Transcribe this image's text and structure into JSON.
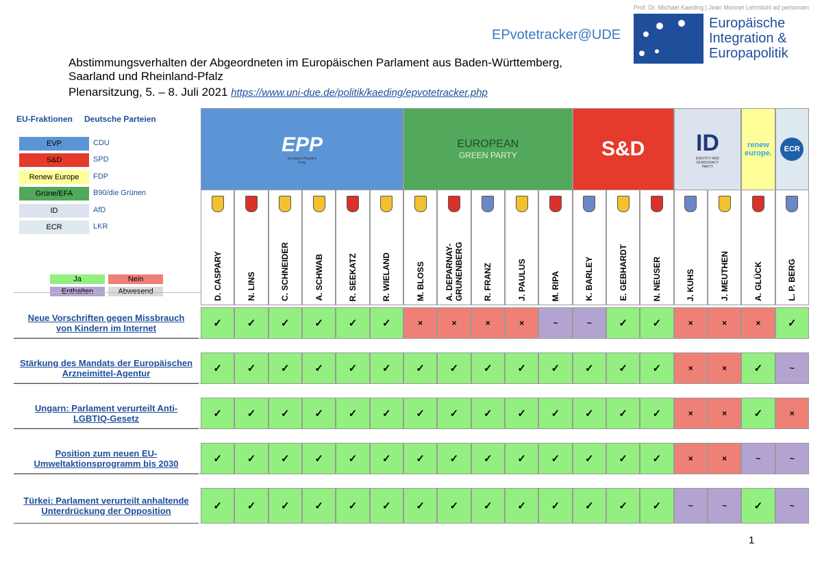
{
  "header": {
    "brand": "EPvotetracker@UDE",
    "chair": "Prof. Dr. Michael Kaeding | Jean Monnet Lehrstuhl ad personam",
    "logo_text": [
      "Europäische",
      "Integration &",
      "Europapolitik"
    ],
    "title_lines": [
      "Abstimmungsverhalten der Abgeordneten im Europäischen Parlament aus Baden-Württemberg,",
      "Saarland und Rheinland-Pfalz"
    ],
    "session": "Plenarsitzung, 5. – 8. Juli 2021",
    "link": "https://www.uni-due.de/politik/kaeding/epvotetracker.php"
  },
  "party_legend": {
    "headers": [
      "EU-Fraktionen",
      "Deutsche Parteien"
    ],
    "rows": [
      {
        "group": "EVP",
        "party": "CDU",
        "color": "#5b95d6"
      },
      {
        "group": "S&D",
        "party": "SPD",
        "color": "#e53b2c"
      },
      {
        "group": "Renew Europe",
        "party": "FDP",
        "color": "#ffff99"
      },
      {
        "group": "Grüne/EFA",
        "party": "B90/die Grünen",
        "color": "#52a95b"
      },
      {
        "group": "ID",
        "party": "AfD",
        "color": "#dde3ee"
      },
      {
        "group": "ECR",
        "party": "LKR",
        "color": "#dde9ef"
      }
    ]
  },
  "vote_legend": [
    {
      "label": "Ja",
      "color": "#93ef7f",
      "symbol": "✓"
    },
    {
      "label": "Nein",
      "color": "#ef8076",
      "symbol": "×"
    },
    {
      "label": "Enthalten",
      "color": "#b3a3d1",
      "symbol": "~"
    },
    {
      "label": "Abwesend",
      "color": "#d9d9d9"
    }
  ],
  "groups": [
    {
      "logo": "EPP",
      "logo_sub": "European People's Party",
      "color": "#5b95d6",
      "members": [
        "D. CASPARY",
        "N. LINS",
        "C. SCHNEIDER",
        "A. SCHWAB",
        "R. SEEKATZ",
        "R. WIELAND"
      ]
    },
    {
      "logo": "EUROPEAN",
      "logo_sub": "GREEN PARTY",
      "color": "#52a95b",
      "members": [
        "M. BLOSS",
        "A. DEPARNAY-GRUNENBERG",
        "R. FRANZ",
        "J. PAULUS",
        "M. RIPA"
      ]
    },
    {
      "logo": "S&D",
      "color": "#e53b2c",
      "members": [
        "K. BARLEY",
        "E. GEBHARDT",
        "N. NEUSER"
      ]
    },
    {
      "logo": "ID",
      "logo_sub": "IDENTITY AND DEMOCRACY PARTY",
      "color": "#dde3ee",
      "members": [
        "J. KUHS",
        "J. MEUTHEN"
      ]
    },
    {
      "logo": "renew europe.",
      "color": "#ffff99",
      "members": [
        "A. GLÜCK"
      ]
    },
    {
      "logo": "ECR",
      "color": "#dde9ef",
      "members": [
        "L. P. BERG"
      ]
    }
  ],
  "votes": [
    {
      "title": "Neue Vorschriften gegen Missbrauch von Kindern im Internet",
      "votes": [
        "✓",
        "✓",
        "✓",
        "✓",
        "✓",
        "✓",
        "×",
        "×",
        "×",
        "×",
        "~",
        "~",
        "✓",
        "✓",
        "×",
        "×",
        "×",
        "✓"
      ]
    },
    {
      "title": "Stärkung des Mandats der Europäischen Arzneimittel-Agentur",
      "votes": [
        "✓",
        "✓",
        "✓",
        "✓",
        "✓",
        "✓",
        "✓",
        "✓",
        "✓",
        "✓",
        "✓",
        "✓",
        "✓",
        "✓",
        "×",
        "×",
        "✓",
        "~"
      ]
    },
    {
      "title": "Ungarn: Parlament verurteilt Anti-LGBTIQ-Gesetz",
      "votes": [
        "✓",
        "✓",
        "✓",
        "✓",
        "✓",
        "✓",
        "✓",
        "✓",
        "✓",
        "✓",
        "✓",
        "✓",
        "✓",
        "✓",
        "×",
        "×",
        "✓",
        "×"
      ]
    },
    {
      "title": "Position zum neuen EU-Umweltaktionsprogramm bis 2030",
      "votes": [
        "✓",
        "✓",
        "✓",
        "✓",
        "✓",
        "✓",
        "✓",
        "✓",
        "✓",
        "✓",
        "✓",
        "✓",
        "✓",
        "✓",
        "×",
        "×",
        "~",
        "~"
      ]
    },
    {
      "title": "Türkei: Parlament verurteilt anhaltende Unterdrückung der Opposition",
      "votes": [
        "✓",
        "✓",
        "✓",
        "✓",
        "✓",
        "✓",
        "✓",
        "✓",
        "✓",
        "✓",
        "✓",
        "✓",
        "✓",
        "✓",
        "~",
        "~",
        "✓",
        "~"
      ]
    }
  ],
  "page_number": "1"
}
